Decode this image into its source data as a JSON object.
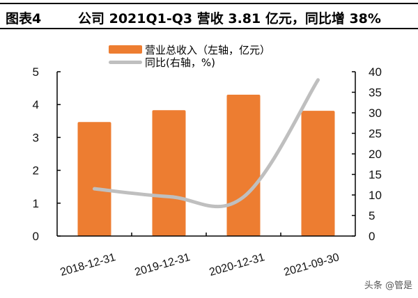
{
  "header": {
    "figure_label": "图表4",
    "title": "公司 2021Q1-Q3 营收 3.81 亿元，同比增 38%"
  },
  "legend": {
    "bar_label": "营业总收入（左轴，亿元）",
    "line_label": "同比(右轴，%)"
  },
  "watermark": "头条 @管是",
  "colors": {
    "bar": "#ED7D31",
    "line": "#BFBFBF",
    "axis": "#000000"
  },
  "chart_data": {
    "type": "bar+line",
    "title": "公司 2021Q1-Q3 营收 3.81 亿元，同比增 38%",
    "categories": [
      "2018-12-31",
      "2019-12-31",
      "2020-12-31",
      "2021-09-30"
    ],
    "series": [
      {
        "name": "营业总收入（左轴，亿元）",
        "type": "bar",
        "axis": "left",
        "values": [
          3.47,
          3.83,
          4.3,
          3.81
        ]
      },
      {
        "name": "同比(右轴，%)",
        "type": "line",
        "axis": "right",
        "values": [
          11.5,
          9.6,
          9.5,
          38
        ]
      }
    ],
    "left_axis": {
      "ylim": [
        0,
        5
      ],
      "ticks": [
        "0",
        "1",
        "2",
        "3",
        "4",
        "5"
      ]
    },
    "right_axis": {
      "ylim": [
        0,
        40
      ],
      "ticks": [
        "0",
        "5",
        "10",
        "15",
        "20",
        "25",
        "30",
        "35",
        "40"
      ]
    },
    "xlabel": "",
    "ylabel": "",
    "grid": false,
    "legend_position": "top"
  }
}
